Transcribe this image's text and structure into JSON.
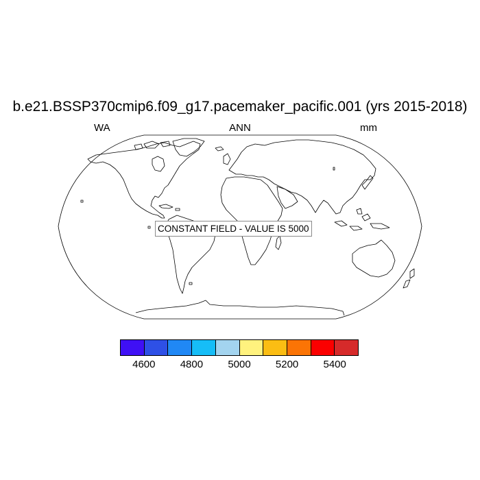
{
  "title": "b.e21.BSSP370cmip6.f09_g17.pacemaker_pacific.001 (yrs 2015-2018)",
  "left_label": "WA",
  "center_label": "ANN",
  "right_label": "mm",
  "map": {
    "projection": "Robinson",
    "constant_field_text": "CONSTANT FIELD - VALUE IS 5000"
  },
  "colorbar": {
    "colors": [
      "#3f10f5",
      "#2e50e6",
      "#2088f5",
      "#16bdf7",
      "#a3d4ef",
      "#fff27e",
      "#fbbd13",
      "#fb7405",
      "#fb0000",
      "#d62a2a"
    ],
    "labels": [
      "4600",
      "4800",
      "5000",
      "5200",
      "5400"
    ]
  }
}
